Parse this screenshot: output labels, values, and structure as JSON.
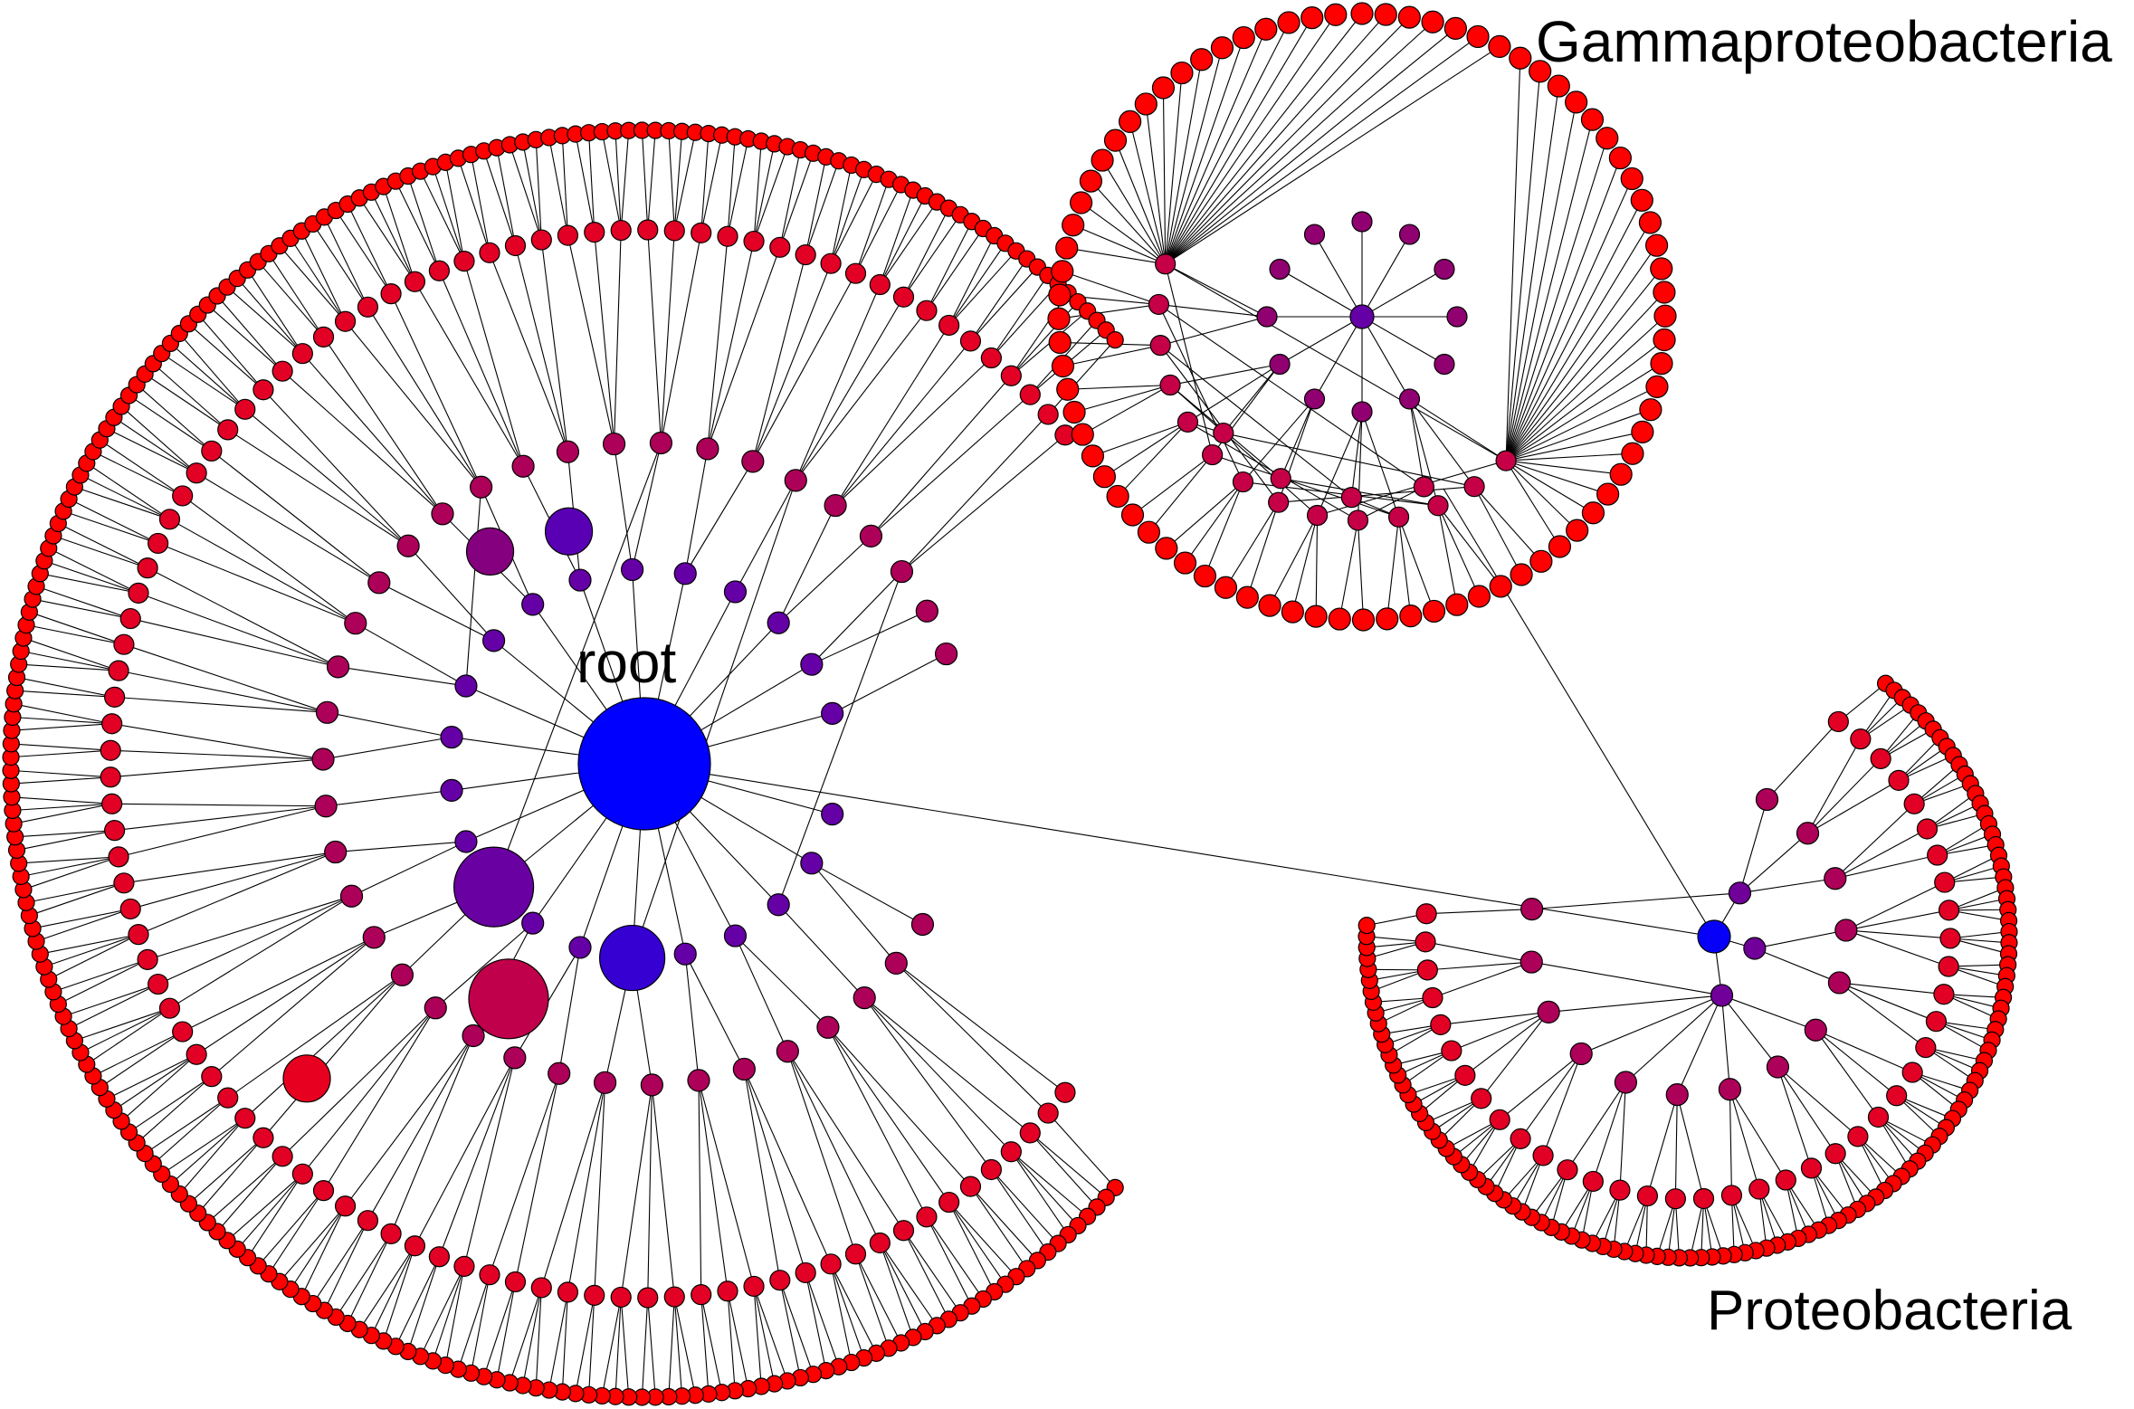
{
  "labels": {
    "root": "root",
    "gammaproteobacteria": "Gammaproteobacteria",
    "proteobacteria": "Proteobacteria"
  },
  "colors": {
    "background": "#ffffff",
    "edge": "#000000",
    "depth_gradient": [
      "#0000ff",
      "#5a00b4",
      "#900070",
      "#cc0040",
      "#ff0000"
    ]
  },
  "clusters": [
    {
      "name": "root",
      "hub": "root",
      "levels": 4,
      "layout": "radial-arc"
    },
    {
      "name": "Gammaproteobacteria",
      "hub": "gamma-hub",
      "levels": 3,
      "layout": "radial-circle"
    },
    {
      "name": "Proteobacteria",
      "hub": "proteo-hub",
      "levels": 4,
      "layout": "radial-arc"
    }
  ],
  "cross_links": [
    {
      "from": "root",
      "to": "proteo-hub"
    },
    {
      "from": "gamma-hub",
      "to": "proteo-hub"
    }
  ]
}
